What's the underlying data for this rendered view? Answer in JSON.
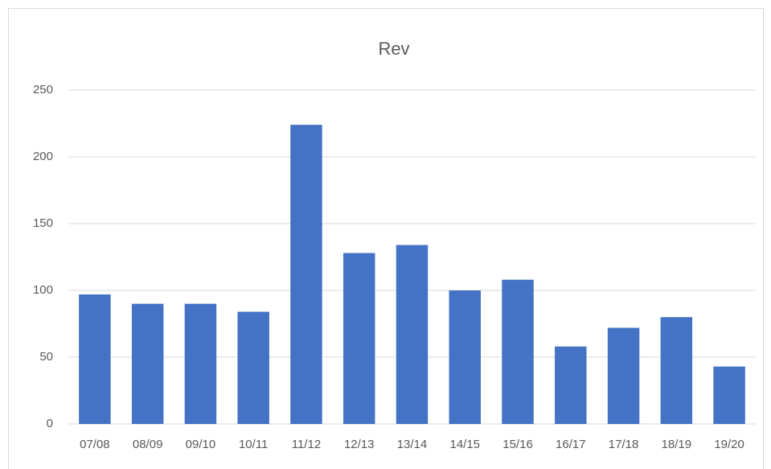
{
  "chart_data": {
    "type": "bar",
    "title": "Rev",
    "categories": [
      "07/08",
      "08/09",
      "09/10",
      "10/11",
      "11/12",
      "12/13",
      "13/14",
      "14/15",
      "15/16",
      "16/17",
      "17/18",
      "18/19",
      "19/20"
    ],
    "values": [
      97,
      90,
      90,
      84,
      224,
      128,
      134,
      100,
      108,
      58,
      72,
      80,
      43
    ],
    "color": "#4472c4",
    "ylim": [
      0,
      250
    ],
    "yticks": [
      0,
      50,
      100,
      150,
      200,
      250
    ],
    "grid": true
  }
}
